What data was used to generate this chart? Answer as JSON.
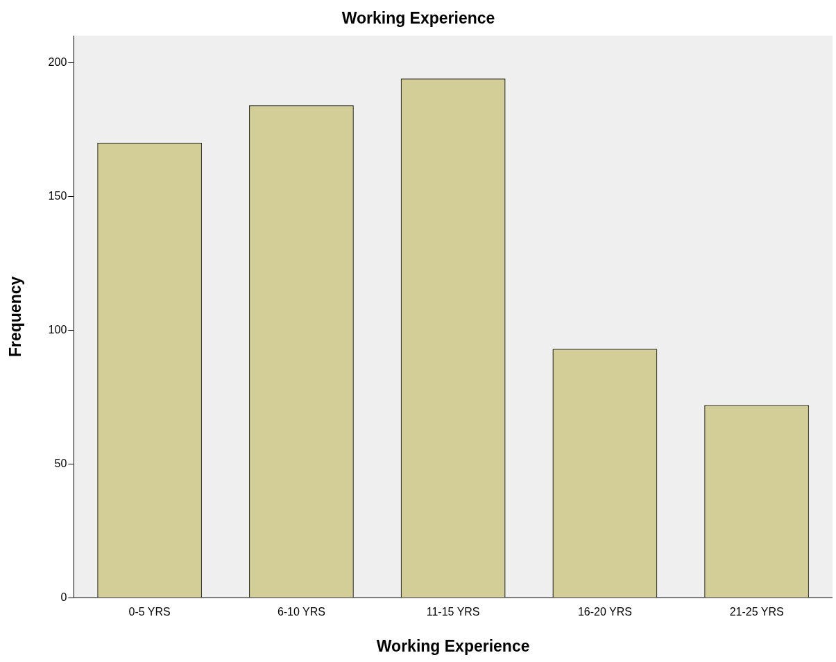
{
  "chart_data": {
    "type": "bar",
    "title": "Working Experience",
    "xlabel": "Working Experience",
    "ylabel": "Frequency",
    "categories": [
      "0-5 YRS",
      "6-10 YRS",
      "11-15 YRS",
      "16-20 YRS",
      "21-25 YRS"
    ],
    "values": [
      170,
      184,
      194,
      93,
      72
    ],
    "color": "#d3ce97",
    "ylim": [
      0,
      210
    ],
    "yticks": [
      0,
      50,
      100,
      150,
      200
    ],
    "grid": false
  }
}
